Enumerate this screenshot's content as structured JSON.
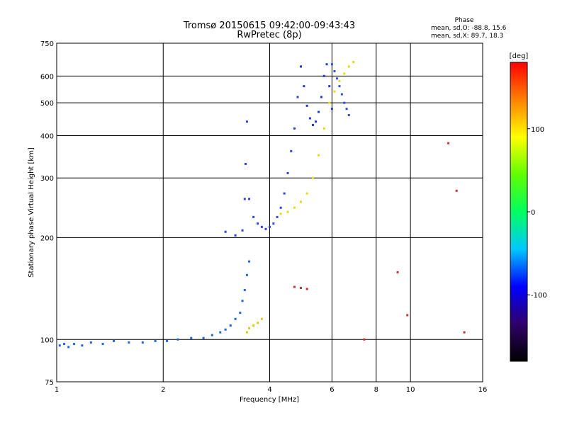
{
  "chart_data": {
    "type": "scatter",
    "title": "Tromsø 20150615 09:42:00-09:43:43",
    "subtitle": "RwPretec (8p)",
    "xlabel": "Frequency [MHz]",
    "ylabel": "Stationary phase Virtual Height [km]",
    "x_scale": "log",
    "y_scale": "log",
    "xlim": [
      1,
      16
    ],
    "ylim": [
      75,
      750
    ],
    "x_ticks": [
      1,
      2,
      4,
      6,
      8,
      10,
      16
    ],
    "y_ticks": [
      75,
      100,
      200,
      300,
      400,
      500,
      600,
      750
    ],
    "phase_header": "Phase",
    "phase_o_stats": "mean, sd,O: -88.8, 15.6",
    "phase_x_stats": "mean, sd,X: 89.7, 18.3",
    "colorbar": {
      "label": "[deg]",
      "range": [
        -180,
        180
      ],
      "ticks": [
        100,
        0,
        -100
      ],
      "colors": [
        "#000000",
        "#30006a",
        "#0000ff",
        "#00c8ff",
        "#00ff60",
        "#60ff00",
        "#ffff00",
        "#ff8000",
        "#ff0000"
      ]
    },
    "series": [
      {
        "name": "low-frequency trace",
        "color": "#1a64e6",
        "x": [
          1.02,
          1.05,
          1.08,
          1.12,
          1.18,
          1.25,
          1.35,
          1.45,
          1.6,
          1.75,
          1.9,
          2.05,
          2.2,
          2.4,
          2.6,
          2.75,
          2.9,
          3.0,
          3.1,
          3.2,
          3.3,
          3.35,
          3.4,
          3.45,
          3.5
        ],
        "y": [
          96,
          97,
          95,
          97,
          96,
          98,
          97,
          99,
          98,
          98,
          99,
          99,
          100,
          101,
          101,
          103,
          105,
          107,
          110,
          115,
          120,
          130,
          140,
          155,
          170
        ]
      },
      {
        "name": "O-mode F1 trace",
        "color": "#2846dc",
        "x": [
          3.0,
          3.2,
          3.35,
          3.4,
          3.42,
          3.45,
          3.5,
          3.6,
          3.7,
          3.8,
          3.9,
          4.0,
          4.1,
          4.2,
          4.3,
          4.4,
          4.5,
          4.6,
          4.7,
          4.8,
          4.9
        ],
        "y": [
          208,
          203,
          210,
          260,
          330,
          440,
          260,
          230,
          220,
          215,
          212,
          215,
          220,
          230,
          245,
          270,
          310,
          360,
          420,
          520,
          640
        ]
      },
      {
        "name": "O-mode F2 trace",
        "color": "#1e3cd2",
        "x": [
          4.9,
          5.0,
          5.1,
          5.2,
          5.3,
          5.4,
          5.5,
          5.6,
          5.7,
          5.8,
          5.9,
          6.0
        ],
        "y": [
          640,
          560,
          490,
          450,
          430,
          440,
          470,
          520,
          600,
          650,
          560,
          480
        ]
      },
      {
        "name": "O-mode upper trace",
        "color": "#2850e6",
        "x": [
          6.0,
          6.1,
          6.2,
          6.3,
          6.4,
          6.5,
          6.6,
          6.7
        ],
        "y": [
          650,
          620,
          590,
          560,
          530,
          500,
          480,
          460
        ]
      },
      {
        "name": "X-mode trace",
        "color": "#e6dc14",
        "x": [
          4.3,
          4.5,
          4.7,
          4.9,
          5.1,
          5.3,
          5.5,
          5.7,
          5.9,
          6.1,
          6.3,
          6.5,
          6.7,
          6.9
        ],
        "y": [
          235,
          238,
          245,
          255,
          270,
          300,
          350,
          420,
          500,
          540,
          580,
          610,
          640,
          660
        ]
      },
      {
        "name": "X-mode low trace",
        "color": "#dcc814",
        "x": [
          3.45,
          3.5,
          3.6,
          3.7,
          3.8
        ],
        "y": [
          105,
          108,
          110,
          112,
          115
        ]
      },
      {
        "name": "scattered echoes",
        "color": "#cc3030",
        "x": [
          4.7,
          4.9,
          5.1,
          7.4,
          9.2,
          9.8,
          12.8,
          13.5,
          14.2
        ],
        "y": [
          143,
          142,
          141,
          100,
          158,
          118,
          380,
          275,
          105
        ]
      }
    ]
  }
}
